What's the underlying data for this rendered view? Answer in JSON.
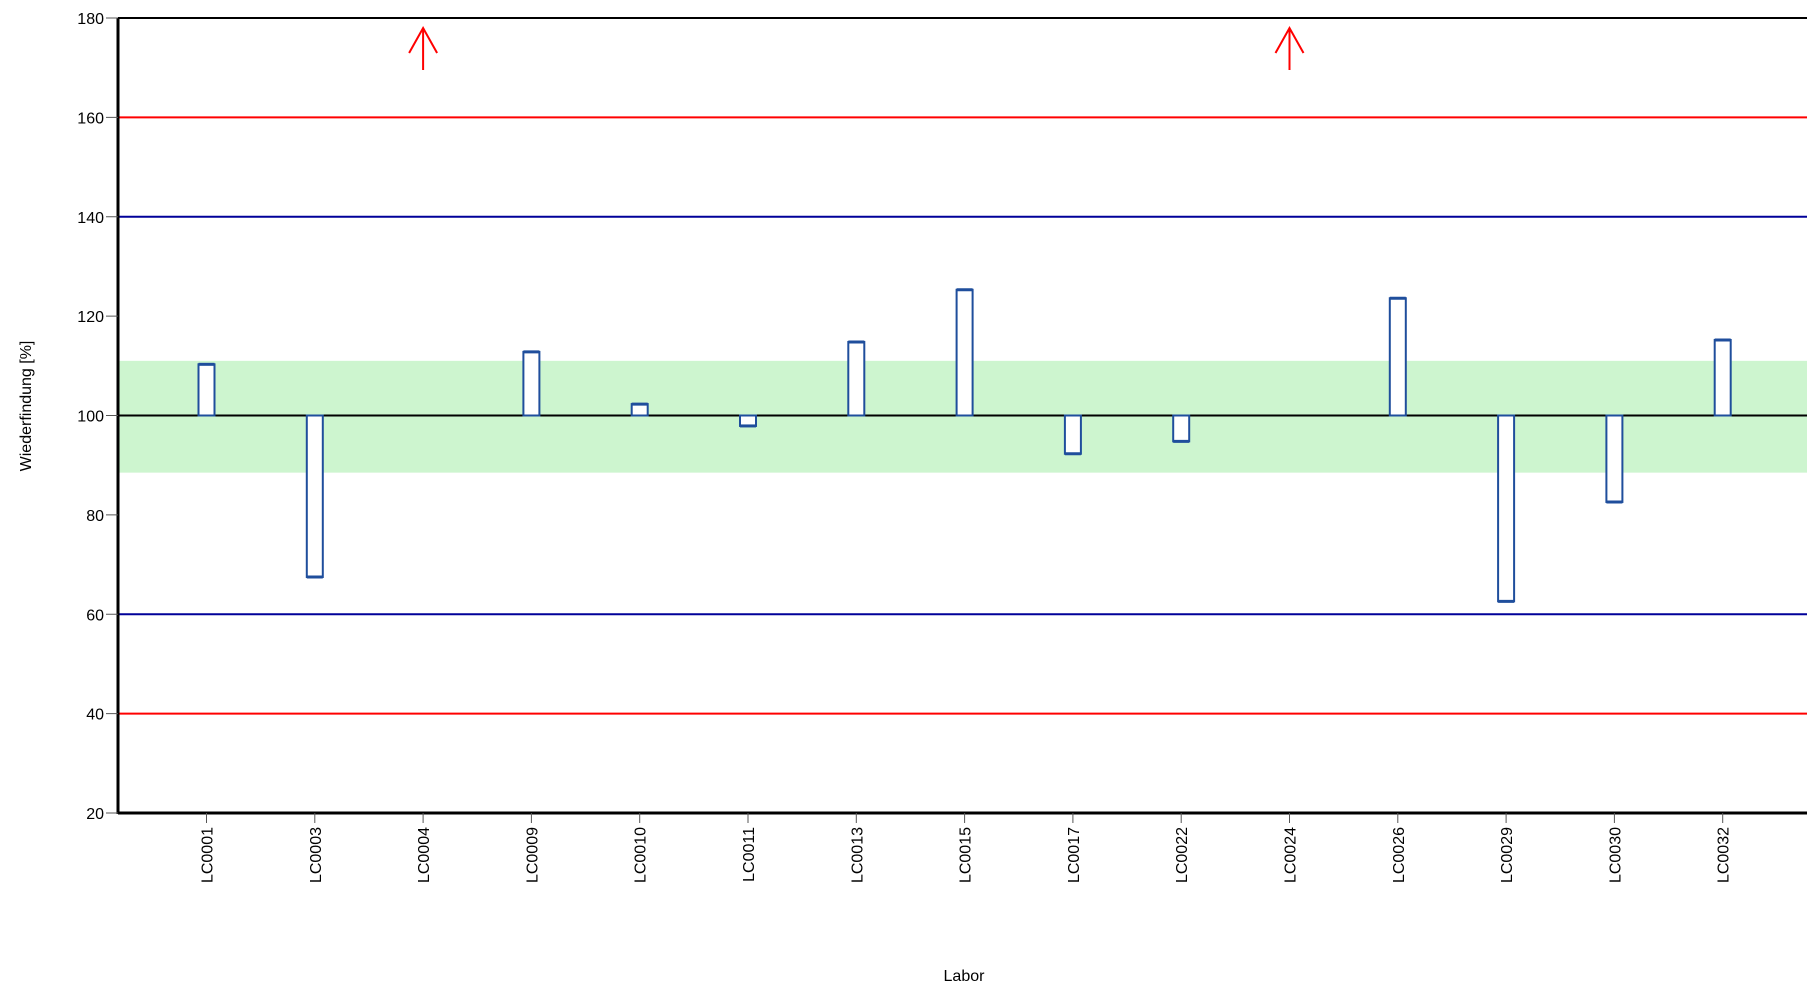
{
  "chart_data": {
    "type": "bar",
    "title": "",
    "xlabel": "Labor",
    "ylabel": "Wiederfindung [%]",
    "ylim": [
      20,
      180
    ],
    "yticks": [
      20,
      40,
      60,
      80,
      100,
      120,
      140,
      160,
      180
    ],
    "baseline": 100,
    "categories": [
      "LC0001",
      "LC0003",
      "LC0004",
      "LC0009",
      "LC0010",
      "LC0011",
      "LC0013",
      "LC0015",
      "LC0017",
      "LC0022",
      "LC0024",
      "LC0026",
      "LC0029",
      "LC0030",
      "LC0032"
    ],
    "values": [
      110.3,
      67.5,
      null,
      112.8,
      102.3,
      97.9,
      114.8,
      125.3,
      92.3,
      94.8,
      null,
      123.6,
      62.6,
      82.6,
      115.2
    ],
    "off_scale_high": [
      "LC0004",
      "LC0024"
    ],
    "acceptance_band": [
      88.5,
      111.0
    ],
    "reference_lines": [
      {
        "value": 160,
        "color": "#ff0000"
      },
      {
        "value": 140,
        "color": "#000099"
      },
      {
        "value": 100,
        "color": "#000000"
      },
      {
        "value": 60,
        "color": "#000099"
      },
      {
        "value": 40,
        "color": "#ff0000"
      }
    ],
    "colors": {
      "bar_stroke": "#1f4e9c",
      "bar_fill": "#ffffff",
      "band_fill": "#cdf5cf",
      "arrow": "#ff0000",
      "axis": "#000000"
    }
  }
}
